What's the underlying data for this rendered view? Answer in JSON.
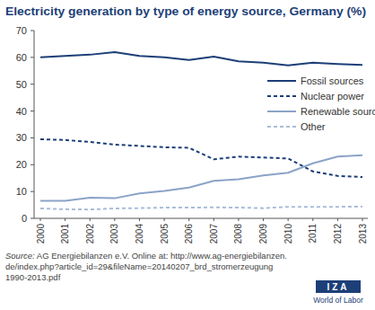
{
  "chart_data": {
    "type": "line",
    "title": "Electricity generation by type of energy source, Germany (%)",
    "categories": [
      "2000",
      "2001",
      "2002",
      "2003",
      "2004",
      "2005",
      "2006",
      "2007",
      "2008",
      "2009",
      "2010",
      "2011",
      "2012",
      "2013"
    ],
    "series": [
      {
        "name": "Fossil sources",
        "color": "#1d3f78",
        "line_style": "solid",
        "values": [
          60,
          60.5,
          61,
          62,
          60.5,
          60,
          59,
          60.3,
          58.5,
          58,
          57,
          58,
          57.5,
          57.2
        ]
      },
      {
        "name": "Nuclear power",
        "color": "#1d3f78",
        "line_style": "dashed",
        "values": [
          29.5,
          29.2,
          28.5,
          27.5,
          27,
          26.5,
          26.3,
          22,
          23,
          22.7,
          22.3,
          17.5,
          15.8,
          15.4
        ]
      },
      {
        "name": "Renewable sources",
        "color": "#8ba3c7",
        "line_style": "solid",
        "values": [
          6.5,
          6.5,
          7.7,
          7.5,
          9.3,
          10.2,
          11.5,
          14,
          14.6,
          16,
          17,
          20.5,
          23,
          23.5
        ]
      },
      {
        "name": "Other",
        "color": "#a9bcd9",
        "line_style": "dashed",
        "values": [
          3.7,
          3.4,
          3.3,
          3.7,
          3.8,
          4,
          4,
          4.1,
          4,
          3.8,
          4.3,
          4.3,
          4.3,
          4.4
        ]
      }
    ],
    "ylim": [
      0,
      70
    ],
    "yticks": [
      0,
      10,
      20,
      30,
      40,
      50,
      60,
      70
    ],
    "grid": false,
    "legend": "right",
    "source": [
      "Source: AG Energiebilanzen e.V. Online at: http://www.ag-energiebilanzen.",
      "de/index.php?article_id=29&fileName=20140207_brd_stromerzeugung",
      "1990-2013.pdf"
    ],
    "logo": {
      "name": "IZA",
      "subtitle": "World of Labor"
    }
  }
}
